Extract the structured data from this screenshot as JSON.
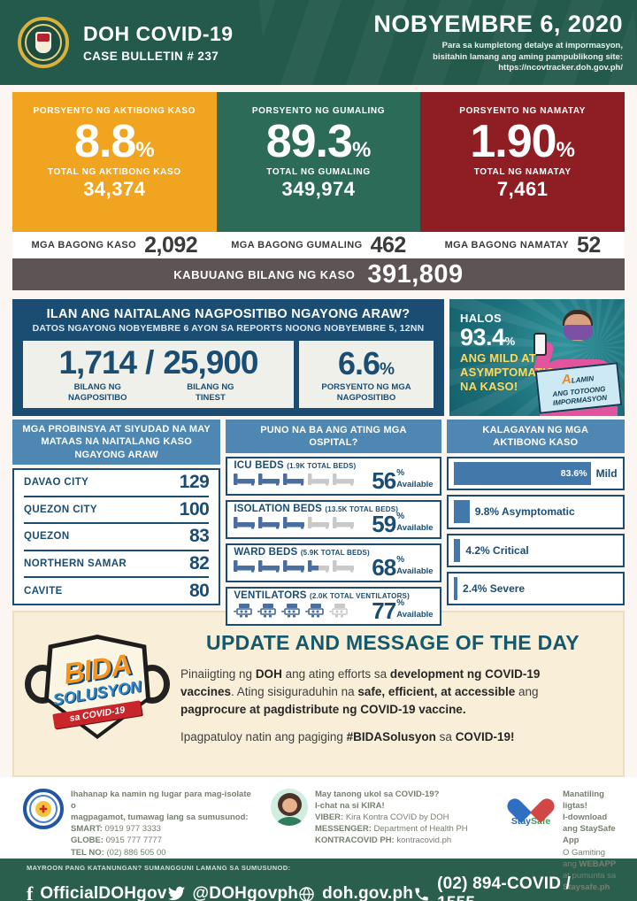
{
  "header": {
    "title": "DOH COVID-19",
    "subtitle": "CASE BULLETIN # 237",
    "date": "NOBYEMBRE 6, 2020",
    "note_line1": "Para sa kumpletong detalye at impormasyon,",
    "note_line2": "bisitahin lamang ang aming pampublikong site:",
    "note_line3": "https://ncovtracker.doh.gov.ph/"
  },
  "colors": {
    "header_green": "#235a4c",
    "card_orange": "#f0a41f",
    "card_green": "#2b6b58",
    "card_red": "#8e1d24",
    "total_bar": "#5e5355",
    "navy": "#1b4d73",
    "panel_blue": "#4d87b2",
    "bar_blue": "#4379aa",
    "banner_teal": "#1d717c",
    "update_cream": "#f9efd8",
    "footer_green": "#2a5f4e"
  },
  "summary_cards": [
    {
      "label": "PORSYENTO NG AKTIBONG KASO",
      "value": "8.8",
      "unit": "%",
      "sub_label": "TOTAL NG AKTIBONG KASO",
      "sub_value": "34,374"
    },
    {
      "label": "PORSYENTO NG GUMALING",
      "value": "89.3",
      "unit": "%",
      "sub_label": "TOTAL NG GUMALING",
      "sub_value": "349,974"
    },
    {
      "label": "PORSYENTO NG NAMATAY",
      "value": "1.90",
      "unit": "%",
      "sub_label": "TOTAL NG NAMATAY",
      "sub_value": "7,461"
    }
  ],
  "new_cases": [
    {
      "label": "MGA BAGONG KASO",
      "value": "2,092"
    },
    {
      "label": "MGA BAGONG GUMALING",
      "value": "462"
    },
    {
      "label": "MGA BAGONG NAMATAY",
      "value": "52"
    }
  ],
  "total": {
    "label": "KABUUANG BILANG NG KASO",
    "value": "391,809"
  },
  "positivity": {
    "title": "ILAN ANG NAITALANG NAGPOSITIBO NGAYONG ARAW?",
    "subtitle": "DATOS NGAYONG NOBYEMBRE 6 AYON SA REPORTS NOONG NOBYEMBRE 5, 12NN",
    "positive_value": "1,714",
    "slash": "/",
    "tested_value": "25,900",
    "positive_label_1": "BILANG NG",
    "positive_label_2": "NAGPOSITIBO",
    "tested_label_1": "BILANG NG",
    "tested_label_2": "TINEST",
    "rate": "6.6",
    "rate_unit": "%",
    "rate_label_1": "PORSYENTO NG MGA",
    "rate_label_2": "NAGPOSITIBO"
  },
  "mild_banner": {
    "intro": "HALOS",
    "pct": "93.4",
    "pct_unit": "%",
    "line1": "ANG MILD AT",
    "line2": "ASYMPTOMATIC",
    "line3": "NA KASO!",
    "badge_a": "A",
    "badge_a_rest": "LAMIN",
    "badge_line2": "ANG TOTOONG",
    "badge_line3": "IMPORMASYON"
  },
  "top_areas": {
    "header": "MGA PROBINSYA AT SIYUDAD NA MAY MATAAS NA NAITALANG KASO NGAYONG ARAW",
    "rows": [
      {
        "name": "DAVAO CITY",
        "value": "129"
      },
      {
        "name": "QUEZON CITY",
        "value": "100"
      },
      {
        "name": "QUEZON",
        "value": "83"
      },
      {
        "name": "NORTHERN SAMAR",
        "value": "82"
      },
      {
        "name": "CAVITE",
        "value": "80"
      }
    ]
  },
  "hospitals": {
    "header": "PUNO NA BA ANG ATING MGA OSPITAL?",
    "pct_unit": "%",
    "available_label": "Available",
    "rows": [
      {
        "name": "ICU BEDS",
        "total": "(1.9K TOTAL BEDS)",
        "pct": 56,
        "icon": "bed"
      },
      {
        "name": "ISOLATION BEDS",
        "total": "(13.5K TOTAL BEDS)",
        "pct": 59,
        "icon": "bed"
      },
      {
        "name": "WARD BEDS",
        "total": "(5.9K TOTAL BEDS)",
        "pct": 68,
        "icon": "bed"
      },
      {
        "name": "VENTILATORS",
        "total": "(2.0K TOTAL VENTILATORS)",
        "pct": 77,
        "icon": "ventilator"
      }
    ]
  },
  "active_status": {
    "header": "KALAGAYAN NG MGA AKTIBONG KASO",
    "rows": [
      {
        "pct": 83.6,
        "inside_text": "83.6%",
        "outside_text": "Mild"
      },
      {
        "pct": 9.8,
        "inside_text": "",
        "outside_text": "9.8% Asymptomatic"
      },
      {
        "pct": 4.2,
        "inside_text": "",
        "outside_text": "4.2% Critical"
      },
      {
        "pct": 2.4,
        "inside_text": "",
        "outside_text": "2.4% Severe"
      }
    ]
  },
  "update": {
    "title": "UPDATE AND MESSAGE OF THE DAY",
    "logo_word1": "BIDA",
    "logo_word2": "SOLUSYON",
    "logo_ribbon": "sa COVID-19",
    "paragraphs": [
      [
        {
          "t": "Pinaiigting ng ",
          "b": 0
        },
        {
          "t": "DOH",
          "b": 1
        },
        {
          "t": " ang ating efforts sa ",
          "b": 0
        },
        {
          "t": "development ng COVID-19 vaccines",
          "b": 1
        },
        {
          "t": ". Ating sisiguraduhin na ",
          "b": 0
        },
        {
          "t": "safe, efficient, at accessible",
          "b": 1
        },
        {
          "t": " ang ",
          "b": 0
        },
        {
          "t": "pagprocure at pagdistribute ng COVID-19 vaccine.",
          "b": 1
        }
      ],
      [
        {
          "t": "Ipagpatuloy natin ang pagiging ",
          "b": 0
        },
        {
          "t": "#BIDASolusyon",
          "b": 1
        },
        {
          "t": " sa ",
          "b": 0
        },
        {
          "t": "COVID-19!",
          "b": 1
        }
      ]
    ]
  },
  "footer": {
    "isolate": {
      "intro_line1": "Ihahanap ka namin ng lugar para mag-isolate o",
      "intro_line2": "magpagamot, tumawag lang sa sumusunod:",
      "lines": [
        {
          "label": "SMART:",
          "value": " 0919 977 3333"
        },
        {
          "label": "GLOBE:",
          "value": " 0915 777 7777"
        },
        {
          "label": "TEL NO:",
          "value": " (02) 886 505 00"
        }
      ]
    },
    "kira": {
      "q1": "May tanong ukol sa COVID-19?",
      "q2": "I-chat na si KIRA!",
      "lines": [
        {
          "label": "VIBER:",
          "value": " Kira Kontra COVID by DOH"
        },
        {
          "label": "MESSENGER:",
          "value": " Department of Health PH"
        },
        {
          "label": "KONTRACOVID PH:",
          "value": " kontracovid.ph"
        }
      ]
    },
    "staysafe": {
      "logo_word_1": "Stay",
      "logo_word_2": "Safe",
      "l1": "Manatiling ligtas!",
      "l2": "I-download ang StaySafe App",
      "l3a": "O Gamiting ang ",
      "l3b": "WEBAPP",
      "l4a": "at pumunta sa ",
      "l4b": "Staysafe.ph"
    }
  },
  "bottom_bar": {
    "question": "MAYROON PANG KATANUNGAN? SUMANGGUNI LAMANG SA SUMUSUNOD:",
    "facebook": "OfficialDOHgov",
    "twitter": "@DOHgovph",
    "website": "doh.gov.ph",
    "hotline": "(02) 894-COVID  /  1555"
  },
  "chart_data": [
    {
      "type": "bar",
      "title": "PUNO NA BA ANG ATING MGA OSPITAL?",
      "categories": [
        "ICU BEDS (1.9K TOTAL BEDS)",
        "ISOLATION BEDS (13.5K TOTAL BEDS)",
        "WARD BEDS (5.9K TOTAL BEDS)",
        "VENTILATORS (2.0K TOTAL VENTILATORS)"
      ],
      "values": [
        56,
        59,
        68,
        77
      ],
      "ylabel": "% Available",
      "ylim": [
        0,
        100
      ]
    },
    {
      "type": "bar",
      "title": "KALAGAYAN NG MGA AKTIBONG KASO",
      "categories": [
        "Mild",
        "Asymptomatic",
        "Critical",
        "Severe"
      ],
      "values": [
        83.6,
        9.8,
        4.2,
        2.4
      ],
      "ylabel": "% of active cases",
      "ylim": [
        0,
        100
      ]
    },
    {
      "type": "table",
      "title": "MGA PROBINSYA AT SIYUDAD NA MAY MATAAS NA NAITALANG KASO NGAYONG ARAW",
      "categories": [
        "DAVAO CITY",
        "QUEZON CITY",
        "QUEZON",
        "NORTHERN SAMAR",
        "CAVITE"
      ],
      "values": [
        129,
        100,
        83,
        82,
        80
      ]
    }
  ]
}
